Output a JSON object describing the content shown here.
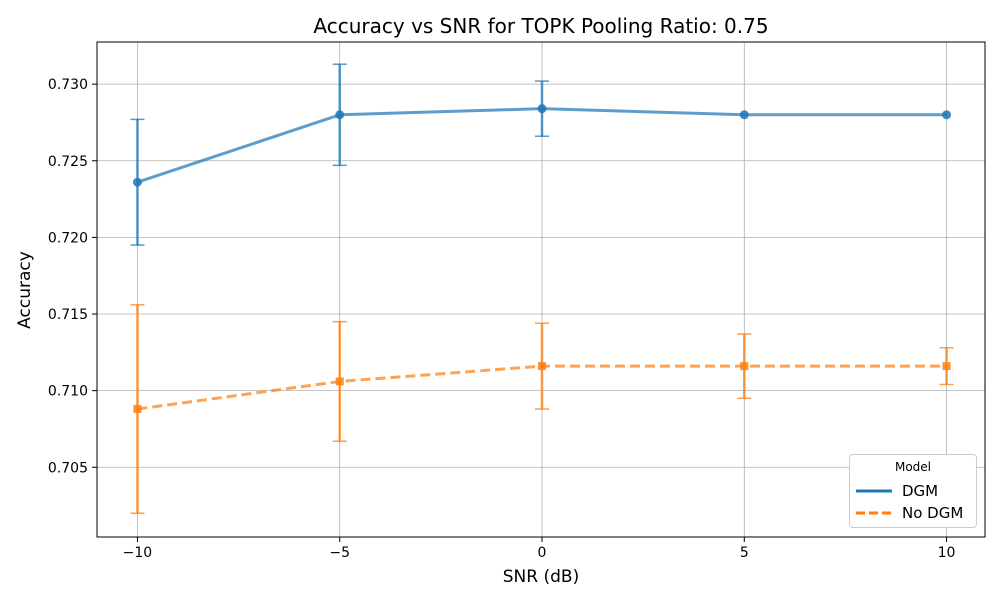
{
  "chart_data": {
    "type": "line",
    "title": "Accuracy vs SNR for TOPK Pooling Ratio: 0.75",
    "xlabel": "SNR (dB)",
    "ylabel": "Accuracy",
    "xlim": [
      -11,
      10.95
    ],
    "ylim": [
      0.70045,
      0.73275
    ],
    "x_ticks": [
      -10,
      -5,
      0,
      5,
      10
    ],
    "x_tick_labels": [
      "−10",
      "−5",
      "0",
      "5",
      "10"
    ],
    "y_ticks": [
      0.705,
      0.71,
      0.715,
      0.72,
      0.725,
      0.73
    ],
    "y_tick_labels": [
      "0.705",
      "0.710",
      "0.715",
      "0.720",
      "0.725",
      "0.730"
    ],
    "grid": true,
    "legend": {
      "title": "Model",
      "position": "bottom-right"
    },
    "x": [
      -10,
      -5,
      0,
      5,
      10
    ],
    "series": [
      {
        "name": "DGM",
        "color": "#1f77b4",
        "line_style": "solid",
        "marker": "circle",
        "values": [
          0.7236,
          0.728,
          0.7284,
          0.728,
          0.728
        ],
        "error": [
          0.0041,
          0.0033,
          0.0018,
          0.0,
          0.0
        ]
      },
      {
        "name": "No DGM",
        "color": "#ff7f0e",
        "line_style": "dashed",
        "marker": "square",
        "values": [
          0.7088,
          0.7106,
          0.7116,
          0.7116,
          0.7116
        ],
        "error": [
          0.0068,
          0.0039,
          0.0028,
          0.0021,
          0.0012
        ]
      }
    ]
  }
}
